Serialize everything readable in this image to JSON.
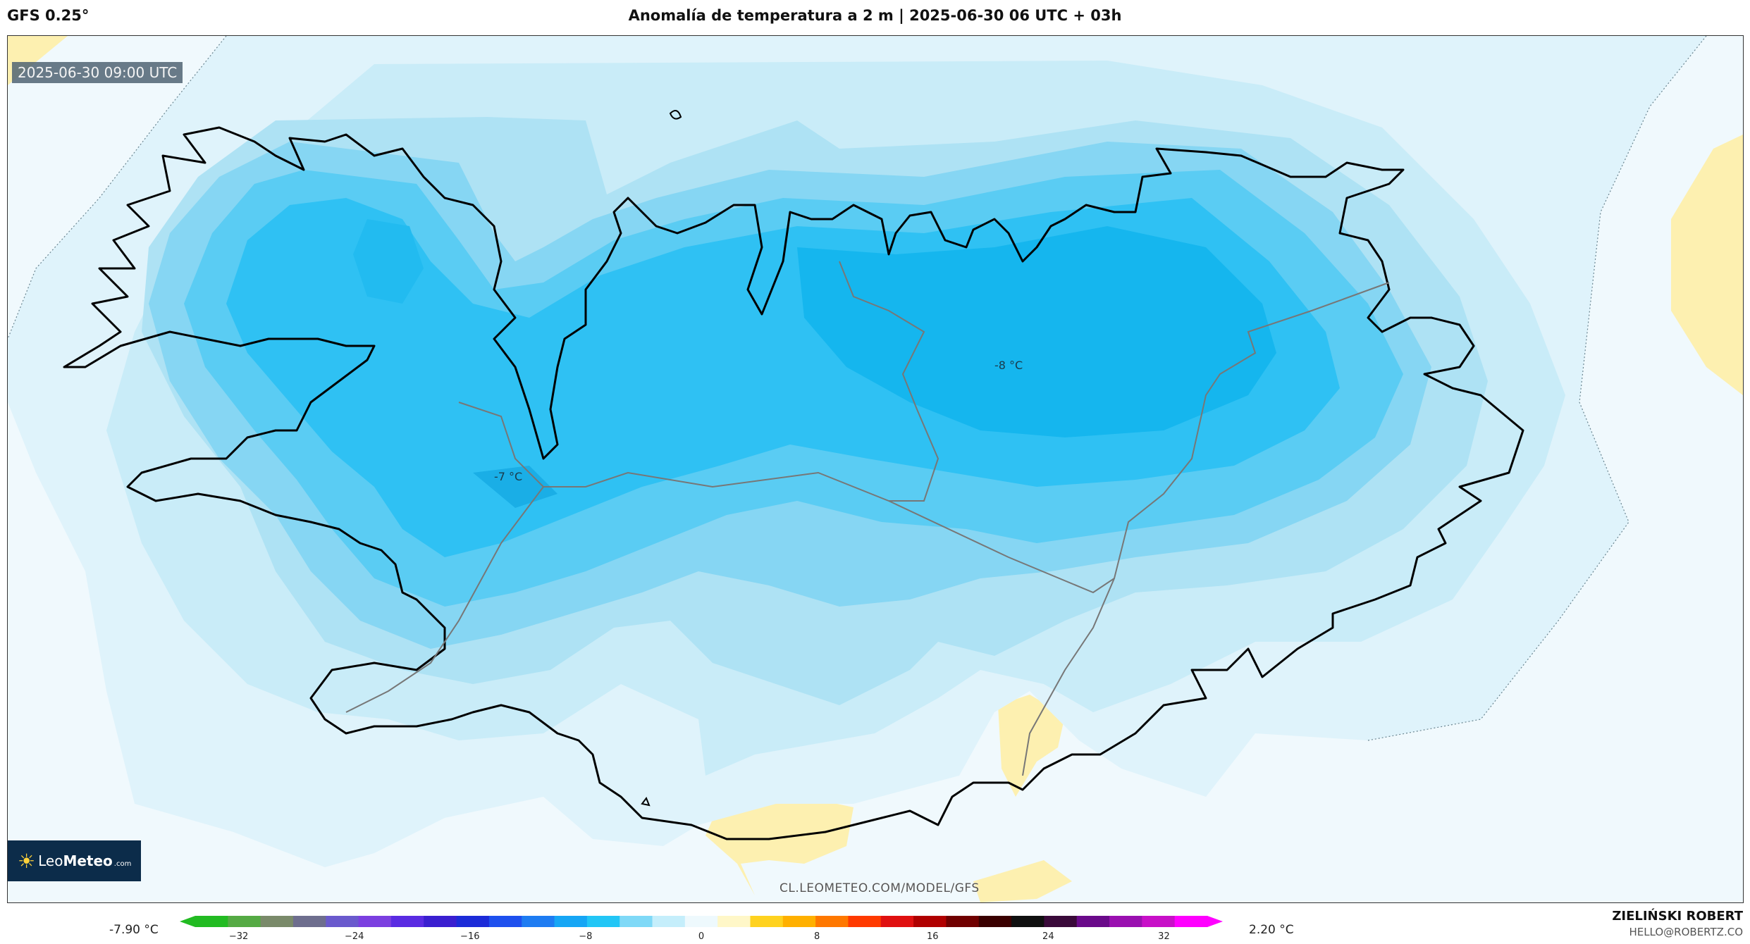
{
  "header": {
    "model_title": "GFS 0.25°",
    "main_title": "Anomalía de temperatura a 2 m | 2025-06-30 06 UTC + 03h"
  },
  "map": {
    "valid_time": "2025-06-30 09:00 UTC",
    "contour_labels": [
      "-7 °C",
      "-8 °C"
    ],
    "watermark": "CL.LEOMETEO.COM/MODEL/GFS",
    "logo": {
      "brand_prefix": "Leo",
      "brand_suffix": "Meteo",
      "domain": ".com"
    }
  },
  "legend": {
    "min_value": "-7.90 °C",
    "max_value": "2.20 °C",
    "ticks": [
      "−32",
      "−24",
      "−16",
      "−8",
      "0",
      "8",
      "16",
      "24",
      "32"
    ],
    "range": [
      -35,
      35
    ],
    "colors": [
      "#22bb22",
      "#55aa44",
      "#7a8a6a",
      "#6e6e8e",
      "#6a5acd",
      "#7b3fe0",
      "#5a2be2",
      "#3a1fd0",
      "#1c2bd8",
      "#1e50ee",
      "#1e7cf2",
      "#16a6f5",
      "#22c6f6",
      "#7fd9f7",
      "#c5eefb",
      "#eef9fd",
      "#fff7c8",
      "#ffd21f",
      "#ffb000",
      "#ff7800",
      "#ff3a00",
      "#e01010",
      "#b00000",
      "#700000",
      "#3a0000",
      "#101010",
      "#3a0a3a",
      "#6a0a8a",
      "#9a10b0",
      "#c810c8",
      "#ff00ff"
    ]
  },
  "credits": {
    "author": "ZIELIŃSKI ROBERT",
    "email": "HELLO@ROBERTZ.CO"
  }
}
